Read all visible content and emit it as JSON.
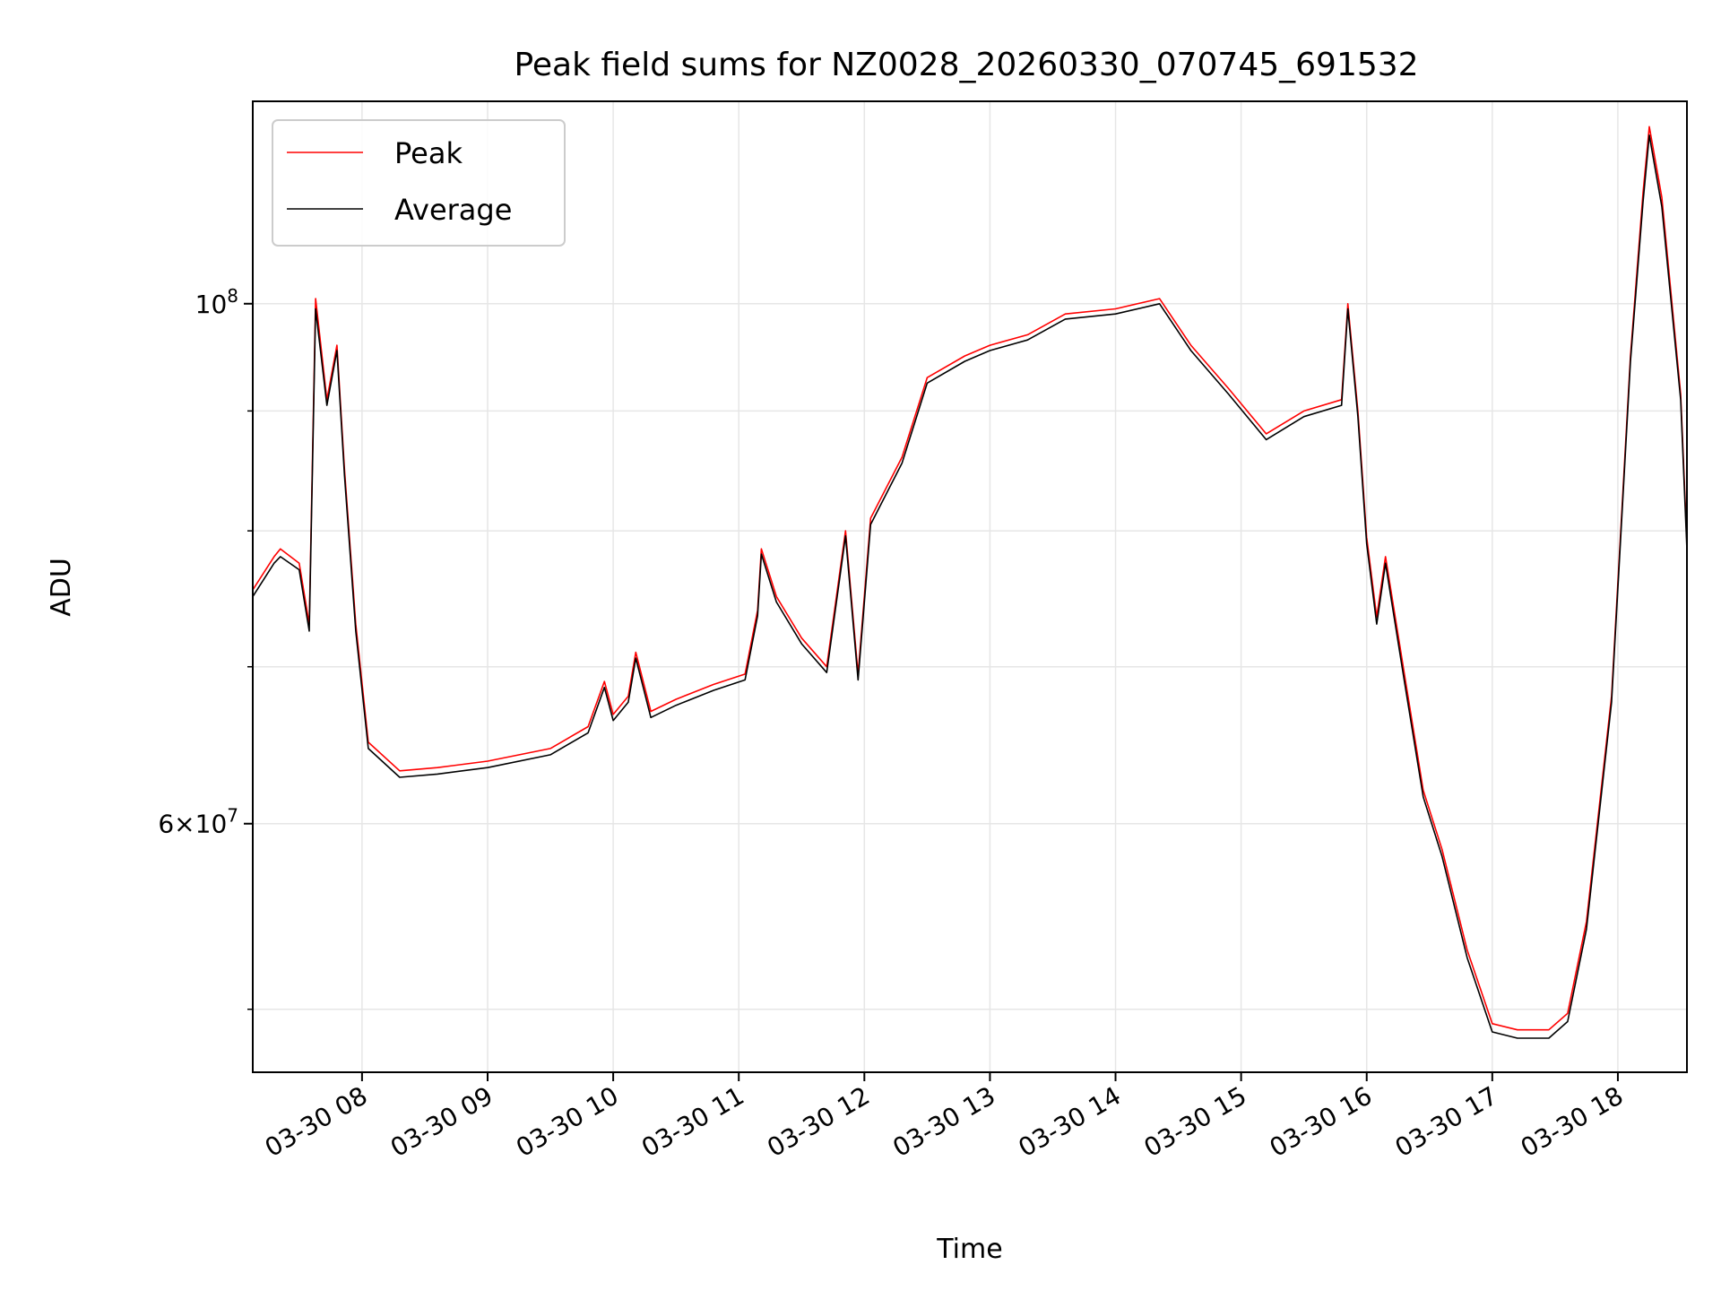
{
  "chart_data": {
    "type": "line",
    "title": "Peak field sums for NZ0028_20260330_070745_691532",
    "xlabel": "Time",
    "ylabel": "ADU",
    "x_unit": "hours on 2026-03-30",
    "xlim": [
      7.13,
      18.55
    ],
    "ylim": [
      47000000,
      122000000
    ],
    "yscale": "log",
    "grid": true,
    "legend_position": "upper-left",
    "x_ticks": [
      {
        "value": 8,
        "label": "03-30 08"
      },
      {
        "value": 9,
        "label": "03-30 09"
      },
      {
        "value": 10,
        "label": "03-30 10"
      },
      {
        "value": 11,
        "label": "03-30 11"
      },
      {
        "value": 12,
        "label": "03-30 12"
      },
      {
        "value": 13,
        "label": "03-30 13"
      },
      {
        "value": 14,
        "label": "03-30 14"
      },
      {
        "value": 15,
        "label": "03-30 15"
      },
      {
        "value": 16,
        "label": "03-30 16"
      },
      {
        "value": 17,
        "label": "03-30 17"
      },
      {
        "value": 18,
        "label": "03-30 18"
      }
    ],
    "y_ticks_major": [
      {
        "value": 60000000,
        "mantissa": "6",
        "base": "10",
        "exp": "7"
      },
      {
        "value": 100000000,
        "mantissa": "",
        "base": "10",
        "exp": "8"
      }
    ],
    "y_ticks_minor": [
      50000000,
      70000000,
      80000000,
      90000000
    ],
    "x": [
      7.13,
      7.3,
      7.35,
      7.5,
      7.58,
      7.63,
      7.72,
      7.8,
      7.86,
      7.95,
      8.05,
      8.3,
      8.6,
      9.0,
      9.5,
      9.8,
      9.93,
      10.0,
      10.12,
      10.18,
      10.3,
      10.5,
      10.8,
      11.05,
      11.15,
      11.18,
      11.3,
      11.5,
      11.7,
      11.85,
      11.95,
      12.05,
      12.3,
      12.5,
      12.8,
      13.0,
      13.3,
      13.6,
      14.0,
      14.35,
      14.6,
      14.9,
      15.2,
      15.5,
      15.8,
      15.85,
      15.93,
      16.0,
      16.08,
      16.15,
      16.3,
      16.45,
      16.6,
      16.8,
      17.0,
      17.2,
      17.45,
      17.6,
      17.75,
      17.95,
      18.1,
      18.2,
      18.25,
      18.35,
      18.5,
      18.55
    ],
    "series": [
      {
        "name": "Peak",
        "color": "#ff0000",
        "values": [
          75500000,
          78000000,
          78600000,
          77500000,
          73000000,
          100500000,
          91000000,
          96000000,
          85000000,
          73000000,
          65000000,
          63200000,
          63400000,
          63800000,
          64600000,
          66000000,
          69000000,
          66800000,
          68000000,
          71000000,
          67000000,
          67800000,
          68800000,
          69500000,
          74000000,
          78600000,
          75000000,
          72000000,
          70000000,
          80000000,
          69500000,
          81000000,
          86000000,
          93000000,
          95000000,
          96000000,
          97000000,
          99000000,
          99500000,
          100500000,
          96000000,
          92000000,
          88000000,
          90000000,
          91000000,
          100000000,
          90000000,
          79500000,
          73500000,
          78000000,
          69500000,
          62000000,
          58500000,
          53000000,
          49300000,
          49000000,
          49000000,
          49800000,
          54500000,
          68000000,
          95000000,
          111500000,
          119000000,
          111000000,
          91500000,
          79000000
        ]
      },
      {
        "name": "Average",
        "color": "#000000",
        "values": [
          75000000,
          77500000,
          78000000,
          77000000,
          72500000,
          99500000,
          90500000,
          95500000,
          84500000,
          72500000,
          64600000,
          62800000,
          63000000,
          63400000,
          64200000,
          65600000,
          68600000,
          66400000,
          67600000,
          70600000,
          66600000,
          67400000,
          68400000,
          69100000,
          73600000,
          78200000,
          74600000,
          71600000,
          69600000,
          79600000,
          69100000,
          80500000,
          85500000,
          92500000,
          94500000,
          95500000,
          96500000,
          98500000,
          99000000,
          100000000,
          95500000,
          91500000,
          87500000,
          89500000,
          90500000,
          99500000,
          89500000,
          79000000,
          73000000,
          77500000,
          69000000,
          61600000,
          58100000,
          52600000,
          48900000,
          48600000,
          48600000,
          49400000,
          54100000,
          67600000,
          94500000,
          110500000,
          118000000,
          110000000,
          91000000,
          78500000
        ]
      }
    ]
  }
}
